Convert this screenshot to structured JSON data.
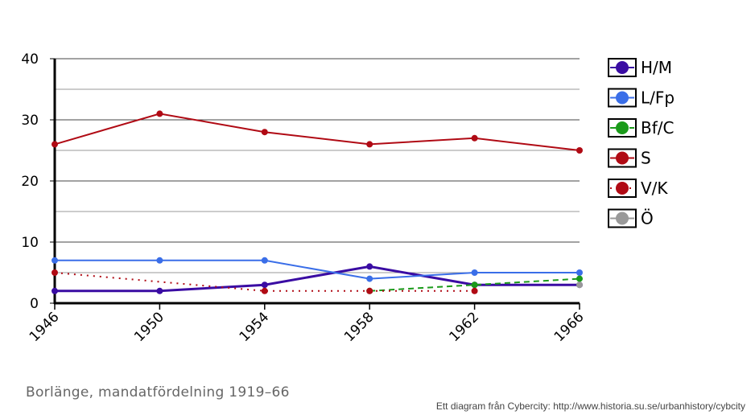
{
  "chart_data": {
    "type": "line",
    "x": [
      1946,
      1950,
      1954,
      1958,
      1962,
      1966
    ],
    "xticks": [
      "1946",
      "1950",
      "1954",
      "1958",
      "1962",
      "1966"
    ],
    "ylim": [
      0,
      40
    ],
    "yticks": [
      "0",
      "10",
      "20",
      "30",
      "40"
    ],
    "grid": true,
    "legend_position": "right",
    "series": [
      {
        "name": "H/M",
        "color": "#3a0ca3",
        "style": "solid",
        "values": [
          2,
          2,
          3,
          6,
          3,
          3
        ]
      },
      {
        "name": "L/Fp",
        "color": "#3a6ee8",
        "style": "solid",
        "values": [
          7,
          7,
          7,
          4,
          5,
          5
        ]
      },
      {
        "name": "Bf/C",
        "color": "#1a9a1a",
        "style": "dashed",
        "values": [
          null,
          null,
          null,
          2,
          3,
          4
        ]
      },
      {
        "name": "S",
        "color": "#b00a14",
        "style": "solid",
        "values": [
          26,
          31,
          28,
          26,
          27,
          25
        ]
      },
      {
        "name": "V/K",
        "color": "#b00a14",
        "style": "dotted",
        "values": [
          5,
          null,
          2,
          2,
          2,
          null
        ]
      },
      {
        "name": "Ö",
        "color": "#999999",
        "style": "solid",
        "values": [
          null,
          null,
          null,
          null,
          null,
          3
        ]
      }
    ]
  },
  "caption": "Borlänge, mandatfördelning 1919–66",
  "credit": "Ett diagram från Cybercity: http://www.historia.su.se/urbanhistory/cybcity"
}
